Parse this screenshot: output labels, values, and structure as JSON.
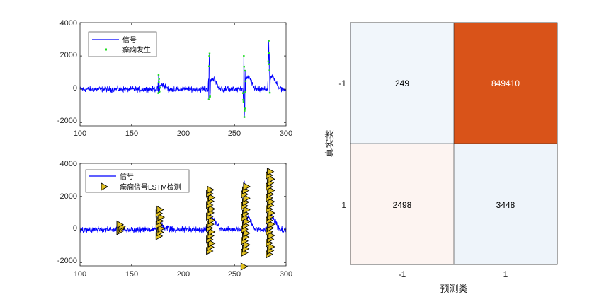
{
  "chart_data": [
    {
      "type": "line",
      "xlim": [
        100,
        300
      ],
      "ylim": [
        -2200,
        4000
      ],
      "xticks": [
        "100",
        "150",
        "200",
        "250",
        "300"
      ],
      "yticks": [
        "-2000",
        "0",
        "2000",
        "4000"
      ],
      "legend": {
        "placement": "top-left",
        "entries": [
          "信号",
          "癫痫发生"
        ]
      },
      "series": [
        {
          "name": "信号",
          "style": "line",
          "color": "#0000ff",
          "bursts": [
            {
              "x": 176,
              "min": -500,
              "max": 1100
            },
            {
              "x": 225,
              "min": -1400,
              "max": 3000
            },
            {
              "x": 259,
              "min": -2200,
              "max": 3300
            },
            {
              "x": 283,
              "min": -1500,
              "max": 3400
            }
          ]
        },
        {
          "name": "癫痫发生",
          "style": "markers",
          "color": "#22dd22",
          "x_ranges": [
            [
              175.8,
              177.6
            ],
            [
              224.8,
              226.4
            ],
            [
              258.2,
              260.8
            ],
            [
              282.6,
              284.4
            ]
          ]
        }
      ]
    },
    {
      "type": "line",
      "xlim": [
        100,
        300
      ],
      "ylim": [
        -2200,
        4000
      ],
      "xticks": [
        "100",
        "150",
        "200",
        "250",
        "300"
      ],
      "yticks": [
        "-2000",
        "0",
        "2000",
        "4000"
      ],
      "legend": {
        "placement": "top-left",
        "entries": [
          "信号",
          "癫痫信号LSTM检测"
        ]
      },
      "series": [
        {
          "name": "信号",
          "style": "line",
          "color": "#0000ff"
        },
        {
          "name": "癫痫信号LSTM检测",
          "style": "triangle-markers",
          "color": "#e0c020",
          "detections": [
            {
              "x": 138.5,
              "min": -100,
              "max": 300
            },
            {
              "x": 176.5,
              "min": -400,
              "max": 1200
            },
            {
              "x": 225.5,
              "min": -1300,
              "max": 2400
            },
            {
              "x": 259.5,
              "min": -1400,
              "max": 2600
            },
            {
              "x": 283.5,
              "min": -1500,
              "max": 3500
            }
          ],
          "outliers": [
            {
              "x": 259,
              "y": -2250
            }
          ]
        }
      ]
    },
    {
      "type": "heatmap",
      "title": "",
      "xlabel": "预测类",
      "ylabel": "真实类",
      "x_categories": [
        "-1",
        "1"
      ],
      "y_categories": [
        "-1",
        "1"
      ],
      "cells": [
        {
          "row": 0,
          "col": 0,
          "value": 249,
          "color": "#f1f6fb",
          "text_color": "#000000"
        },
        {
          "row": 0,
          "col": 1,
          "value": 849410,
          "color": "#d95319",
          "text_color": "#ffffff"
        },
        {
          "row": 1,
          "col": 0,
          "value": 2498,
          "color": "#fdf4f1",
          "text_color": "#000000"
        },
        {
          "row": 1,
          "col": 1,
          "value": 3448,
          "color": "#eef4fa",
          "text_color": "#000000"
        }
      ]
    }
  ]
}
